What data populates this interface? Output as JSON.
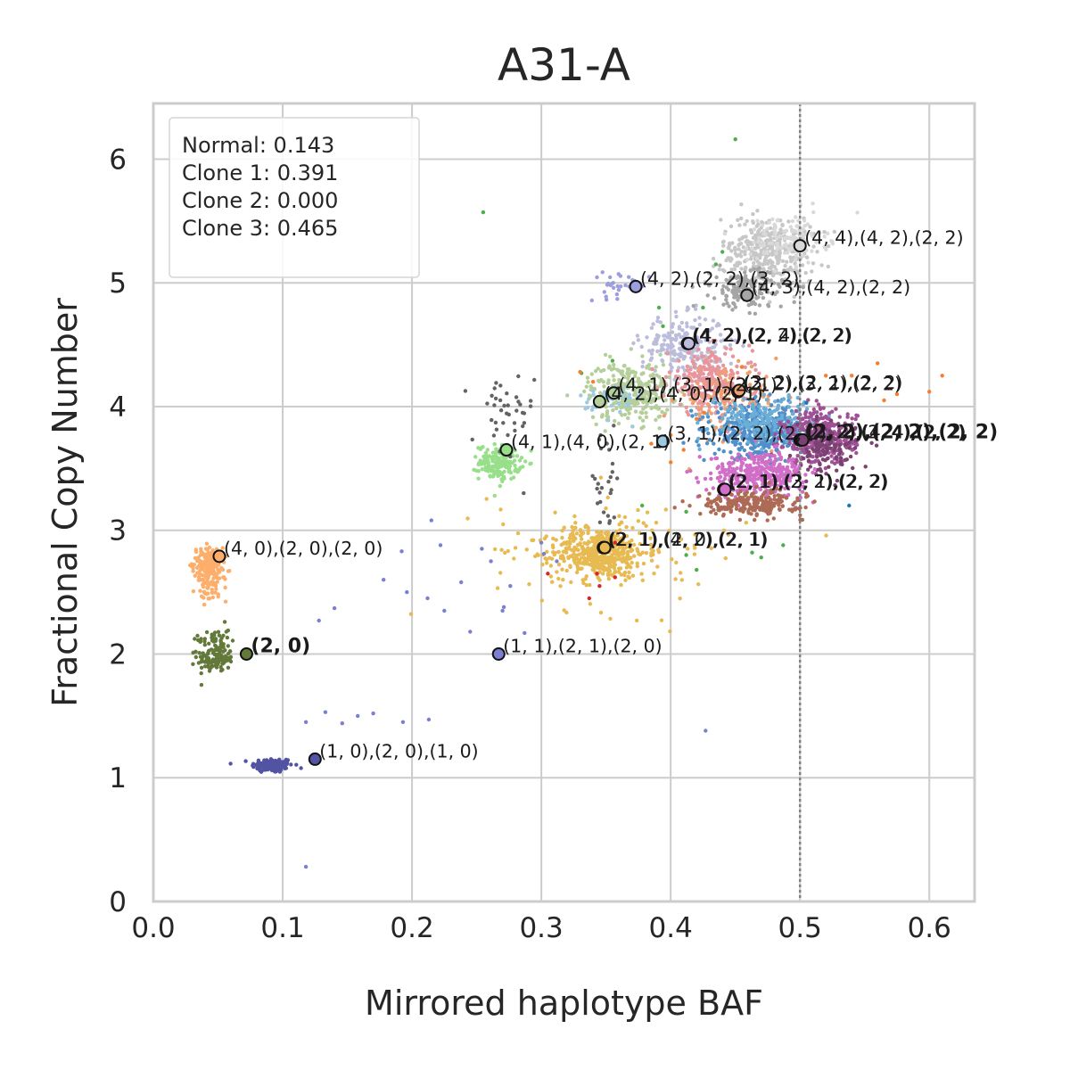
{
  "chart_data": {
    "type": "scatter",
    "title": "A31-A",
    "xlabel": "Mirrored haplotype BAF",
    "ylabel": "Fractional Copy Number",
    "xlim": [
      0.0,
      0.635
    ],
    "ylim": [
      0.0,
      6.45
    ],
    "xticks": [
      {
        "v": 0.0,
        "label": "0.0"
      },
      {
        "v": 0.1,
        "label": "0.1"
      },
      {
        "v": 0.2,
        "label": "0.2"
      },
      {
        "v": 0.3,
        "label": "0.3"
      },
      {
        "v": 0.4,
        "label": "0.4"
      },
      {
        "v": 0.5,
        "label": "0.5"
      },
      {
        "v": 0.6,
        "label": "0.6"
      }
    ],
    "yticks": [
      {
        "v": 0,
        "label": "0"
      },
      {
        "v": 1,
        "label": "1"
      },
      {
        "v": 2,
        "label": "2"
      },
      {
        "v": 3,
        "label": "3"
      },
      {
        "v": 4,
        "label": "4"
      },
      {
        "v": 5,
        "label": "5"
      },
      {
        "v": 6,
        "label": "6"
      }
    ],
    "grid": true,
    "reference_line": {
      "x": 0.5,
      "style": "dotted",
      "color": "#808080"
    },
    "legend": {
      "placement": "top-left",
      "lines": [
        "Normal: 0.143",
        "Clone 1: 0.391",
        "Clone 2: 0.000",
        "Clone 3: 0.465"
      ]
    },
    "clusters": [
      {
        "color": "#5254a3",
        "cx": 0.092,
        "cy": 1.1,
        "sx": 0.008,
        "sy": 0.03,
        "n": 140
      },
      {
        "color": "#637939",
        "cx": 0.048,
        "cy": 1.96,
        "sx": 0.007,
        "sy": 0.05,
        "n": 110
      },
      {
        "color": "#637939",
        "cx": 0.047,
        "cy": 2.12,
        "sx": 0.006,
        "sy": 0.06,
        "n": 40
      },
      {
        "color": "#fdae6b",
        "cx": 0.042,
        "cy": 2.74,
        "sx": 0.006,
        "sy": 0.06,
        "n": 140
      },
      {
        "color": "#fdae6b",
        "cx": 0.045,
        "cy": 2.55,
        "sx": 0.006,
        "sy": 0.06,
        "n": 70
      },
      {
        "color": "#98df8a",
        "cx": 0.268,
        "cy": 3.55,
        "sx": 0.008,
        "sy": 0.07,
        "n": 170
      },
      {
        "color": "#636363",
        "cx": 0.27,
        "cy": 3.9,
        "sx": 0.012,
        "sy": 0.2,
        "n": 40
      },
      {
        "color": "#636363",
        "cx": 0.35,
        "cy": 3.3,
        "sx": 0.008,
        "sy": 0.25,
        "n": 30
      },
      {
        "color": "#e7ba52",
        "cx": 0.345,
        "cy": 2.82,
        "sx": 0.018,
        "sy": 0.1,
        "n": 450
      },
      {
        "color": "#e7ba52",
        "cx": 0.36,
        "cy": 2.85,
        "sx": 0.05,
        "sy": 0.25,
        "n": 110
      },
      {
        "color": "#9c9ede",
        "cx": 0.36,
        "cy": 4.98,
        "sx": 0.012,
        "sy": 0.05,
        "n": 30
      },
      {
        "color": "#bcbddc",
        "cx": 0.41,
        "cy": 4.5,
        "sx": 0.016,
        "sy": 0.12,
        "n": 220
      },
      {
        "color": "#b5cf9b",
        "cx": 0.368,
        "cy": 4.12,
        "sx": 0.016,
        "sy": 0.12,
        "n": 300
      },
      {
        "color": "#9ecae1",
        "cx": 0.355,
        "cy": 4.05,
        "sx": 0.012,
        "sy": 0.08,
        "n": 40
      },
      {
        "color": "#c7c7c7",
        "cx": 0.475,
        "cy": 5.25,
        "sx": 0.018,
        "sy": 0.14,
        "n": 360
      },
      {
        "color": "#d9d9d9",
        "cx": 0.49,
        "cy": 5.35,
        "sx": 0.015,
        "sy": 0.1,
        "n": 120
      },
      {
        "color": "#a5a5a5",
        "cx": 0.46,
        "cy": 4.95,
        "sx": 0.014,
        "sy": 0.08,
        "n": 170
      },
      {
        "color": "#e7969c",
        "cx": 0.43,
        "cy": 4.2,
        "sx": 0.016,
        "sy": 0.13,
        "n": 260
      },
      {
        "color": "#f0a070",
        "cx": 0.445,
        "cy": 4.05,
        "sx": 0.02,
        "sy": 0.12,
        "n": 120
      },
      {
        "color": "#4f8fcc",
        "cx": 0.47,
        "cy": 3.8,
        "sx": 0.018,
        "sy": 0.1,
        "n": 420
      },
      {
        "color": "#6baed6",
        "cx": 0.47,
        "cy": 3.9,
        "sx": 0.02,
        "sy": 0.1,
        "n": 170
      },
      {
        "color": "#a05195",
        "cx": 0.515,
        "cy": 3.75,
        "sx": 0.014,
        "sy": 0.11,
        "n": 380
      },
      {
        "color": "#7b4173",
        "cx": 0.52,
        "cy": 3.65,
        "sx": 0.012,
        "sy": 0.1,
        "n": 120
      },
      {
        "color": "#d16ec7",
        "cx": 0.468,
        "cy": 3.45,
        "sx": 0.018,
        "sy": 0.09,
        "n": 360
      },
      {
        "color": "#ad6b55",
        "cx": 0.462,
        "cy": 3.22,
        "sx": 0.02,
        "sy": 0.05,
        "n": 240
      }
    ],
    "scattered_points": [
      {
        "color": "#7b7fd1",
        "pts": [
          [
            0.125,
            1.15
          ],
          [
            0.133,
            1.53
          ],
          [
            0.146,
            1.44
          ],
          [
            0.158,
            1.5
          ],
          [
            0.17,
            1.52
          ],
          [
            0.193,
            1.45
          ],
          [
            0.213,
            1.47
          ],
          [
            0.118,
            0.28
          ],
          [
            0.128,
            2.27
          ],
          [
            0.14,
            2.37
          ],
          [
            0.178,
            2.6
          ],
          [
            0.196,
            2.5
          ],
          [
            0.212,
            2.45
          ],
          [
            0.215,
            3.08
          ],
          [
            0.238,
            2.58
          ],
          [
            0.245,
            2.18
          ],
          [
            0.261,
            2.75
          ],
          [
            0.271,
            2.38
          ],
          [
            0.254,
            2.85
          ],
          [
            0.287,
            2.17
          ],
          [
            0.302,
            2.81
          ],
          [
            0.3,
            2.9
          ],
          [
            0.312,
            2.75
          ],
          [
            0.427,
            1.38
          ],
          [
            0.192,
            2.83
          ],
          [
            0.225,
            2.35
          ],
          [
            0.222,
            2.88
          ],
          [
            0.27,
            2.35
          ],
          [
            0.276,
            2.55
          ],
          [
            0.118,
            1.45
          ]
        ]
      },
      {
        "color": "#4daf4a",
        "pts": [
          [
            0.255,
            5.57
          ],
          [
            0.45,
            6.16
          ],
          [
            0.44,
            5.25
          ],
          [
            0.435,
            5.15
          ],
          [
            0.394,
            4.65
          ],
          [
            0.391,
            4.8
          ],
          [
            0.412,
            2.8
          ],
          [
            0.42,
            2.68
          ],
          [
            0.47,
            2.78
          ],
          [
            0.487,
            2.88
          ],
          [
            0.463,
            2.82
          ],
          [
            0.412,
            3.15
          ],
          [
            0.378,
            3.2
          ],
          [
            0.425,
            4.8
          ],
          [
            0.331,
            4.27
          ],
          [
            0.355,
            4.37
          ]
        ]
      },
      {
        "color": "#f47f2e",
        "pts": [
          [
            0.56,
            4.35
          ],
          [
            0.565,
            4.05
          ],
          [
            0.575,
            4.1
          ],
          [
            0.61,
            4.25
          ],
          [
            0.6,
            4.12
          ],
          [
            0.385,
            3.7
          ],
          [
            0.4,
            3.77
          ],
          [
            0.42,
            3.9
          ],
          [
            0.426,
            3.95
          ],
          [
            0.33,
            4.28
          ],
          [
            0.34,
            4.2
          ],
          [
            0.52,
            4.25
          ],
          [
            0.54,
            4.25
          ],
          [
            0.455,
            4.32
          ],
          [
            0.4,
            3.55
          ],
          [
            0.41,
            3.65
          ]
        ]
      },
      {
        "color": "#d62728",
        "pts": [
          [
            0.305,
            2.65
          ],
          [
            0.345,
            2.55
          ],
          [
            0.357,
            2.62
          ],
          [
            0.337,
            2.45
          ],
          [
            0.343,
            2.65
          ],
          [
            0.357,
            2.9
          ]
        ]
      },
      {
        "color": "#1f77b4",
        "pts": [
          [
            0.538,
            3.2
          ],
          [
            0.425,
            3.8
          ],
          [
            0.505,
            4.03
          ]
        ]
      }
    ],
    "cluster_centers": [
      {
        "x": 0.125,
        "y": 1.15,
        "fill": "#5254a3",
        "label": "(1, 0),(2, 0),(1, 0)",
        "bold": false
      },
      {
        "x": 0.072,
        "y": 2.0,
        "fill": "#637939",
        "label": "(2, 0)",
        "bold": true
      },
      {
        "x": 0.051,
        "y": 2.79,
        "fill": "#fdae6b",
        "label": "(4, 0),(2, 0),(2, 0)",
        "bold": false
      },
      {
        "x": 0.267,
        "y": 2.0,
        "fill": "#7b7fd1",
        "label": "(1, 1),(2, 1),(2, 0)",
        "bold": false
      },
      {
        "x": 0.273,
        "y": 3.65,
        "fill": "#98df8a",
        "label": "(4, 1),(4, 0),(2, 1)",
        "bold": false
      },
      {
        "x": 0.348,
        "y": 2.86,
        "fill": "#e7969c",
        "label": "(2, 1),(4, 2),(2, 1)",
        "bold": false
      },
      {
        "x": 0.349,
        "y": 2.86,
        "fill": "#e7ba52",
        "label": "(2, 1),(2, 0),(2, 1)",
        "bold": false
      },
      {
        "x": 0.345,
        "y": 4.04,
        "fill": "#b5cf9b",
        "label": "(4, 2),(4, 0),(2, 1)",
        "bold": false
      },
      {
        "x": 0.356,
        "y": 4.11,
        "fill": "#b5cf9b",
        "label": "(4, 1),(3, 1),(2, 1)",
        "bold": false
      },
      {
        "x": 0.373,
        "y": 4.97,
        "fill": "#9c9ede",
        "label": "(4, 2),(2, 2),(3, 2)",
        "bold": false
      },
      {
        "x": 0.394,
        "y": 3.72,
        "fill": "#9ecae1",
        "label": "(3, 1),(2, 2),(2, 2)",
        "bold": false
      },
      {
        "x": 0.413,
        "y": 4.51,
        "fill": "#bcbddc",
        "label": "(4, 2),(2, 2),(2, 2)",
        "bold": false
      },
      {
        "x": 0.414,
        "y": 4.51,
        "fill": "#bcbddc",
        "label": "(4, 2),(2, 4),(2, 2)",
        "bold": false
      },
      {
        "x": 0.441,
        "y": 3.33,
        "fill": "#ad6b55",
        "label": "(2, 1),(2, 2),(2, 2)",
        "bold": false
      },
      {
        "x": 0.442,
        "y": 3.33,
        "fill": "#d16ec7",
        "label": "(2, 1),(3, 1),(2, 2)",
        "bold": false
      },
      {
        "x": 0.452,
        "y": 4.12,
        "fill": "#e7969c",
        "label": "(2, 2),(3, 2),(2, 2)",
        "bold": false
      },
      {
        "x": 0.453,
        "y": 4.13,
        "fill": "#f0a070",
        "label": "(3, 2),(2, 1),(2, 2)",
        "bold": false
      },
      {
        "x": 0.459,
        "y": 4.9,
        "fill": "#a5a5a5",
        "label": "(4, 3),(4, 2),(2, 2)",
        "bold": false
      },
      {
        "x": 0.5,
        "y": 5.3,
        "fill": "#d9d9d9",
        "label": "(4, 4),(4, 2),(2, 2)",
        "bold": false
      },
      {
        "x": 0.5,
        "y": 3.73,
        "fill": "#4f8fcc",
        "label": "(2, 2),(2, 2),(2, 2)",
        "bold": true
      },
      {
        "x": 0.501,
        "y": 3.73,
        "fill": "#a05195",
        "label": "(2, 2),(2, 4),(2, 2)",
        "bold": false
      },
      {
        "x": 0.502,
        "y": 3.73,
        "fill": "#7b4173",
        "label": "(2, 2),(4, 4),(2, 2)",
        "bold": false
      }
    ]
  }
}
